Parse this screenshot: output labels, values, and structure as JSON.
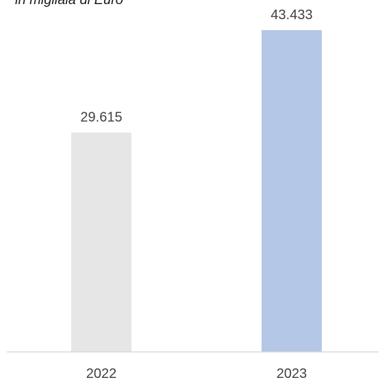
{
  "chart_data": {
    "type": "bar",
    "subtitle": "in migliaia di Euro",
    "categories": [
      "2022",
      "2023"
    ],
    "values": [
      29615,
      43433
    ],
    "value_labels": [
      "29.615",
      "43.433"
    ],
    "xlabel": "",
    "ylabel": "",
    "ylim": [
      0,
      43433
    ],
    "grid": false,
    "legend": "none",
    "colors": [
      "#e6e6e6",
      "#b4c7e7"
    ],
    "axis_color": "#d9d9d9"
  }
}
